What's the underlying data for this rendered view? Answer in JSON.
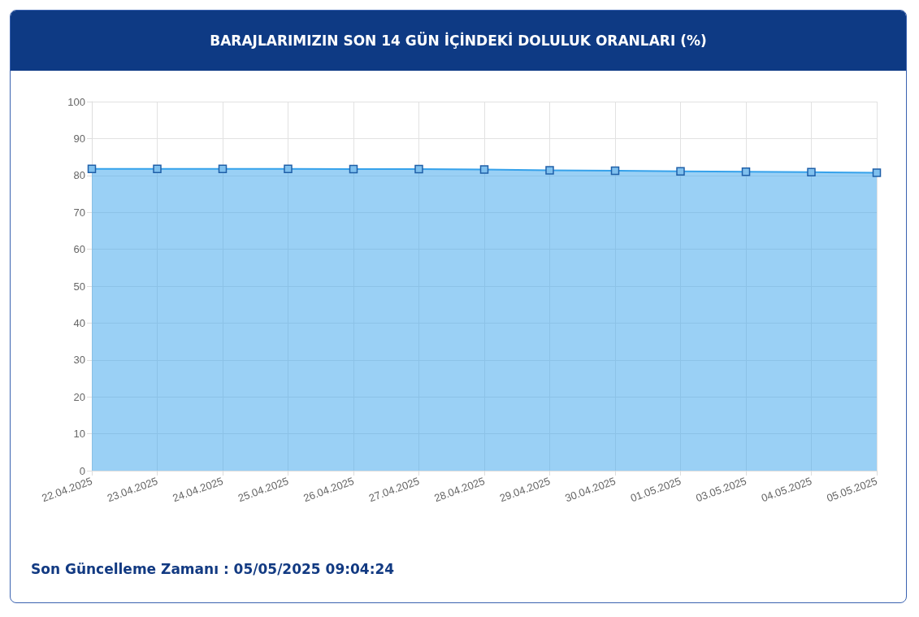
{
  "chart_data": {
    "type": "area",
    "title": "BARAJLARIMIZIN SON 14 GÜN İÇİNDEKİ DOLULUK ORANLARI (%)",
    "categories": [
      "22.04.2025",
      "23.04.2025",
      "24.04.2025",
      "25.04.2025",
      "26.04.2025",
      "27.04.2025",
      "28.04.2025",
      "29.04.2025",
      "30.04.2025",
      "01.05.2025",
      "03.05.2025",
      "04.05.2025",
      "05.05.2025"
    ],
    "series": [
      {
        "color": "#36a2eb",
        "values": [
          81.8,
          81.8,
          81.8,
          81.8,
          81.7,
          81.7,
          81.6,
          81.4,
          81.3,
          81.1,
          81.0,
          80.9,
          80.7
        ]
      }
    ],
    "ylim": [
      0,
      100
    ],
    "yticks": [
      0,
      10,
      20,
      30,
      40,
      50,
      60,
      70,
      80,
      90,
      100
    ],
    "grid": true,
    "marker": "square",
    "annotations": [
      "Son Güncelleme Zamanı : 05/05/2025 09:04:24"
    ]
  }
}
